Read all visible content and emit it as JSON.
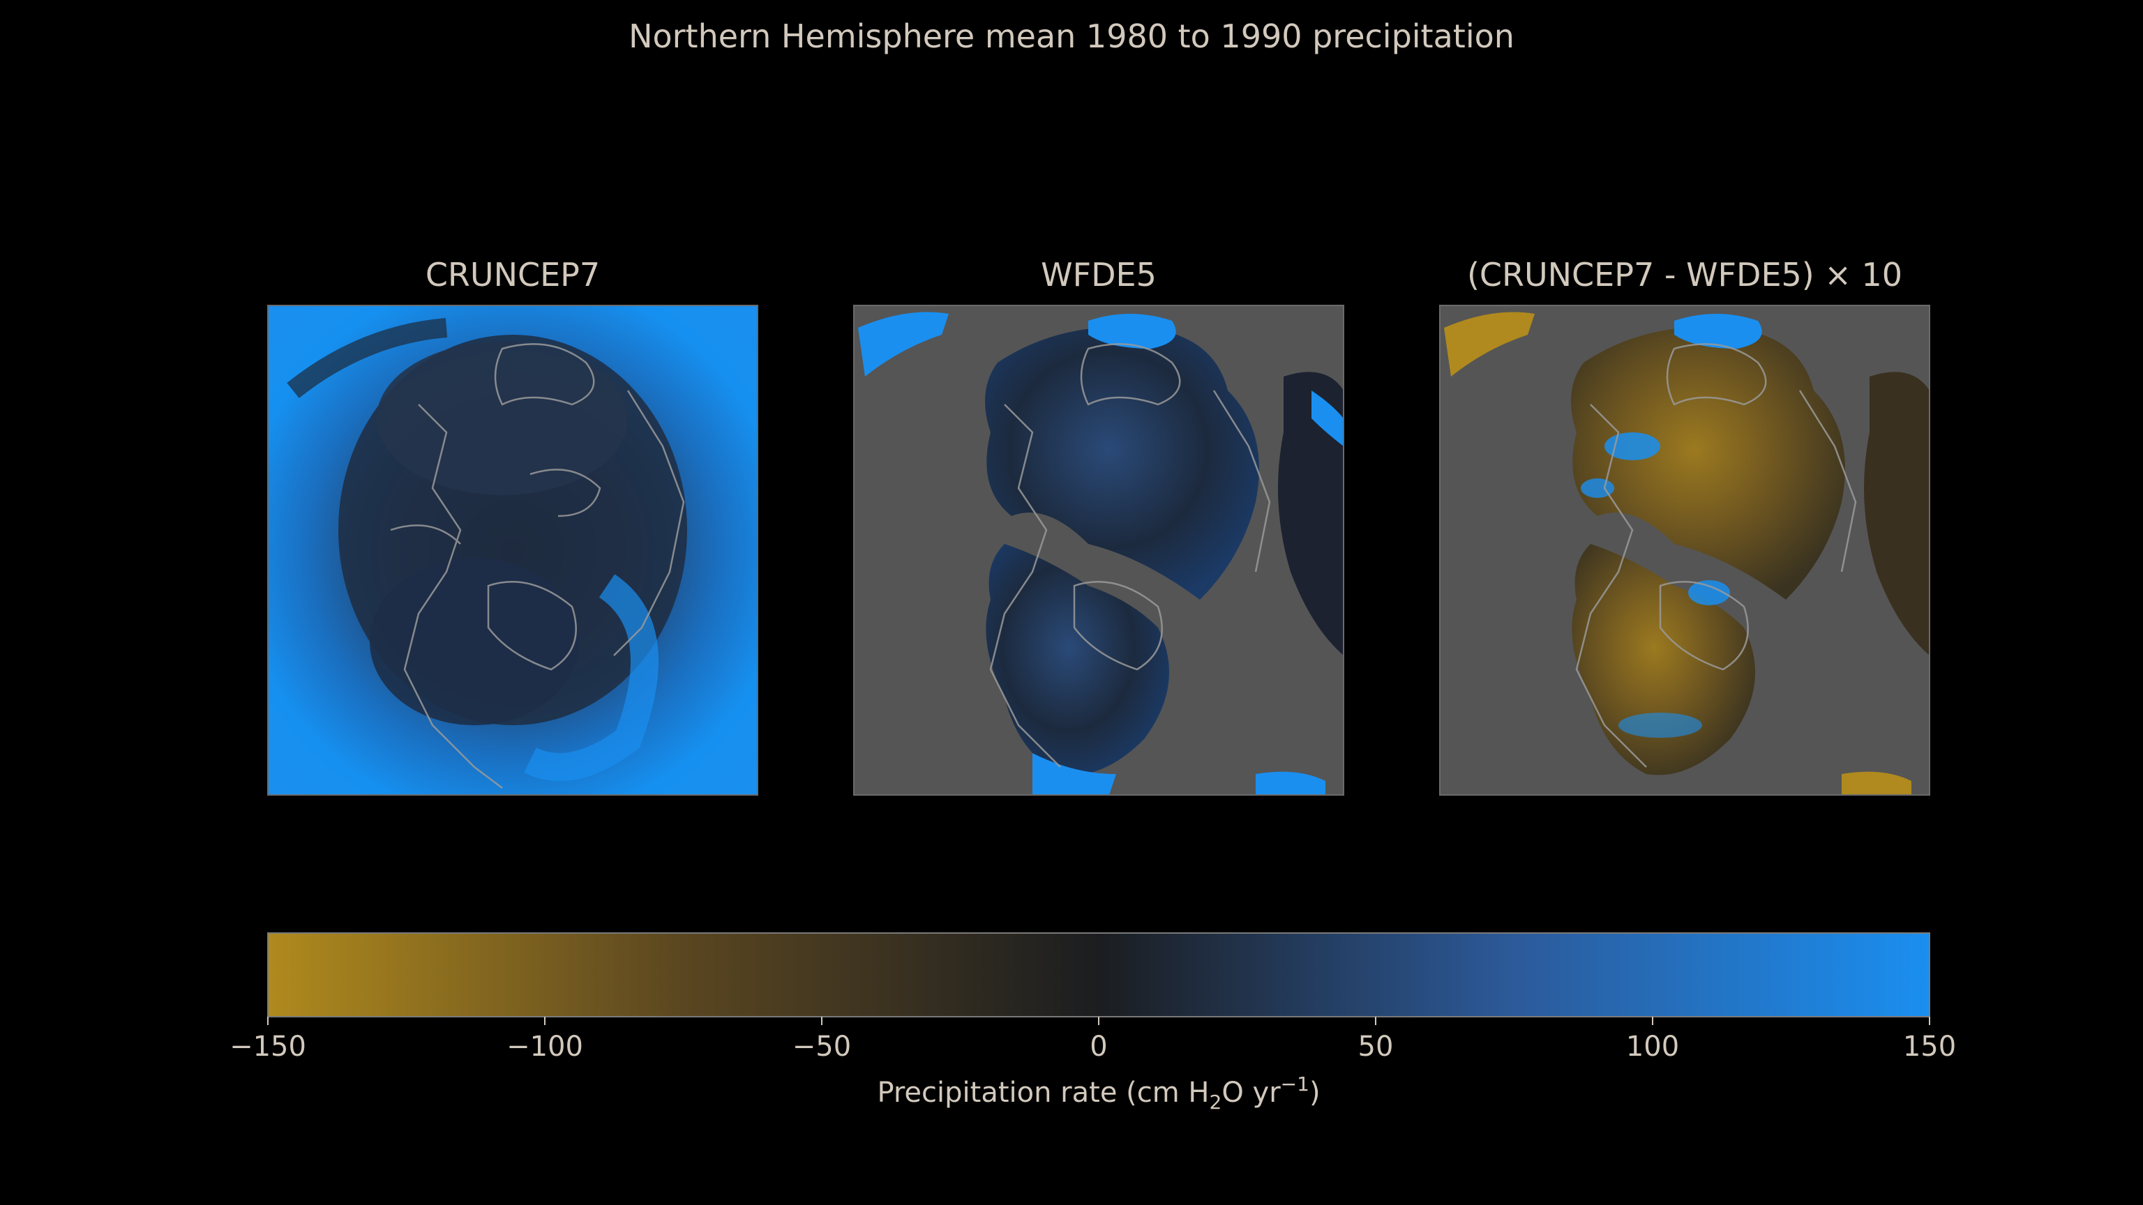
{
  "figure": {
    "suptitle": "Northern Hemisphere mean 1980 to 1990 precipitation"
  },
  "panels": [
    {
      "title": "CRUNCEP7",
      "map": "polar-precipitation-map",
      "field": "full"
    },
    {
      "title": "WFDE5",
      "map": "polar-precipitation-map",
      "field": "masked"
    },
    {
      "title": "(CRUNCEP7 - WFDE5) × 10",
      "map": "polar-precipitation-difference-map",
      "field": "difference"
    }
  ],
  "colors": {
    "background": "#000000",
    "text": "#d2c9bd",
    "masked": "#555555",
    "coastline": "#9a9a9a",
    "colormap": [
      "#b08a1e",
      "#1b1d20",
      "#1a8ff0"
    ]
  },
  "chart_data": {
    "type": "heatmap",
    "title": "Northern Hemisphere mean 1980 to 1990 precipitation",
    "colorbar": {
      "range": [
        -150,
        150
      ],
      "ticks": [
        -150,
        -100,
        -50,
        0,
        50,
        100,
        150
      ],
      "tick_labels": [
        "−150",
        "−100",
        "−50",
        "0",
        "50",
        "100",
        "150"
      ],
      "label_main": "Precipitation rate (cm H",
      "label_sub": "2",
      "label_mid": "O yr",
      "label_sup": "−1",
      "label_end": ")",
      "stops": [
        {
          "value": -150,
          "color": "#b08a1e"
        },
        {
          "value": -75,
          "color": "#5a4620"
        },
        {
          "value": 0,
          "color": "#1b1d20"
        },
        {
          "value": 75,
          "color": "#2c5a9a"
        },
        {
          "value": 150,
          "color": "#1a8ff0"
        }
      ]
    }
  }
}
